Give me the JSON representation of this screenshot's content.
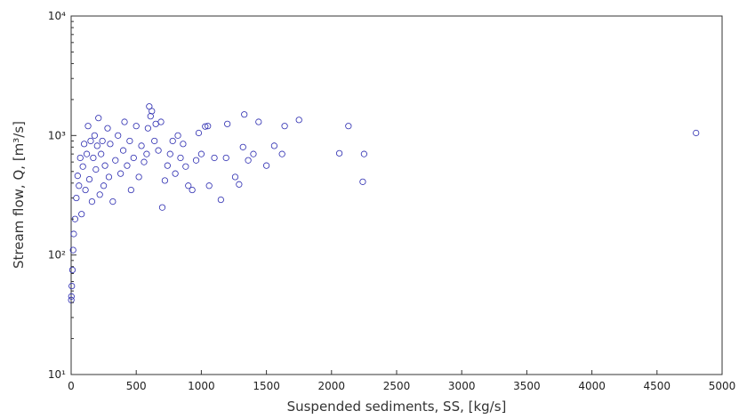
{
  "chart_data": {
    "type": "scatter",
    "title": "",
    "xlabel": "Suspended sediments, SS, [kg/s]",
    "ylabel": "Stream flow, Q, [m³/s]",
    "xlim": [
      0,
      5000
    ],
    "ylim": [
      10,
      10000
    ],
    "yscale": "log",
    "grid": false,
    "legend": "none",
    "x_ticks": [
      0,
      500,
      1000,
      1500,
      2000,
      2500,
      3000,
      3500,
      4000,
      4500,
      5000
    ],
    "x_tick_labels": [
      "0",
      "500",
      "1000",
      "1500",
      "2000",
      "2500",
      "3000",
      "3500",
      "4000",
      "4500",
      "5000"
    ],
    "y_ticks": [
      10,
      100,
      1000,
      10000
    ],
    "y_tick_labels": [
      "10¹",
      "10²",
      "10³",
      "10⁴"
    ],
    "marker_color": "#2b2bb0",
    "series": [
      {
        "points": [
          [
            4800,
            1050
          ],
          [
            2250,
            700
          ],
          [
            2240,
            410
          ],
          [
            2130,
            1200
          ],
          [
            2060,
            710
          ],
          [
            1750,
            1350
          ],
          [
            1640,
            1200
          ],
          [
            1620,
            700
          ],
          [
            1560,
            820
          ],
          [
            1500,
            560
          ],
          [
            1440,
            1300
          ],
          [
            1400,
            700
          ],
          [
            1360,
            620
          ],
          [
            1330,
            1500
          ],
          [
            1320,
            800
          ],
          [
            1290,
            390
          ],
          [
            1260,
            450
          ],
          [
            1200,
            1250
          ],
          [
            1190,
            650
          ],
          [
            1150,
            290
          ],
          [
            1100,
            650
          ],
          [
            1060,
            380
          ],
          [
            1050,
            1200
          ],
          [
            1030,
            1190
          ],
          [
            1000,
            700
          ],
          [
            980,
            1050
          ],
          [
            960,
            620
          ],
          [
            930,
            350
          ],
          [
            900,
            380
          ],
          [
            880,
            550
          ],
          [
            860,
            850
          ],
          [
            840,
            650
          ],
          [
            820,
            1000
          ],
          [
            800,
            480
          ],
          [
            780,
            900
          ],
          [
            760,
            700
          ],
          [
            740,
            560
          ],
          [
            720,
            420
          ],
          [
            700,
            250
          ],
          [
            690,
            1300
          ],
          [
            670,
            750
          ],
          [
            650,
            1250
          ],
          [
            640,
            900
          ],
          [
            620,
            1600
          ],
          [
            610,
            1450
          ],
          [
            600,
            1750
          ],
          [
            590,
            1150
          ],
          [
            580,
            700
          ],
          [
            560,
            600
          ],
          [
            540,
            820
          ],
          [
            520,
            450
          ],
          [
            500,
            1200
          ],
          [
            480,
            650
          ],
          [
            460,
            350
          ],
          [
            450,
            900
          ],
          [
            430,
            560
          ],
          [
            410,
            1300
          ],
          [
            400,
            750
          ],
          [
            380,
            480
          ],
          [
            360,
            1000
          ],
          [
            340,
            620
          ],
          [
            320,
            280
          ],
          [
            300,
            850
          ],
          [
            290,
            450
          ],
          [
            280,
            1150
          ],
          [
            260,
            560
          ],
          [
            250,
            380
          ],
          [
            240,
            900
          ],
          [
            230,
            700
          ],
          [
            220,
            320
          ],
          [
            210,
            1400
          ],
          [
            200,
            820
          ],
          [
            190,
            520
          ],
          [
            180,
            1000
          ],
          [
            170,
            650
          ],
          [
            160,
            280
          ],
          [
            150,
            900
          ],
          [
            140,
            430
          ],
          [
            130,
            1200
          ],
          [
            120,
            700
          ],
          [
            110,
            350
          ],
          [
            100,
            850
          ],
          [
            90,
            550
          ],
          [
            80,
            220
          ],
          [
            70,
            650
          ],
          [
            60,
            380
          ],
          [
            50,
            460
          ],
          [
            40,
            300
          ],
          [
            30,
            200
          ],
          [
            20,
            150
          ],
          [
            15,
            110
          ],
          [
            10,
            75
          ],
          [
            5,
            55
          ],
          [
            2,
            45
          ],
          [
            1,
            42
          ]
        ]
      }
    ]
  }
}
